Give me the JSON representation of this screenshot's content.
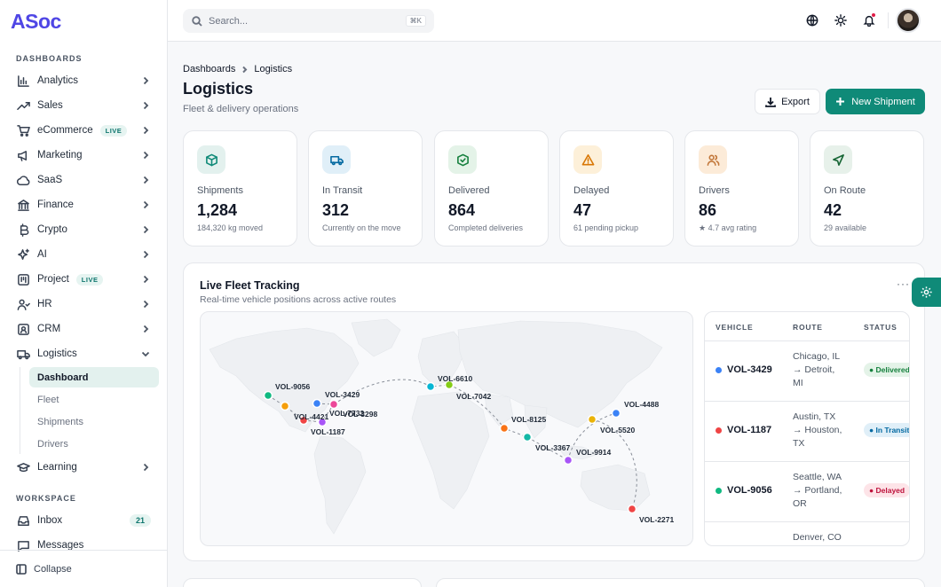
{
  "app": {
    "logo": "ASoc"
  },
  "sidebar": {
    "section_dashboards": "DASHBOARDS",
    "items": [
      {
        "label": "Analytics",
        "icon": "bar-chart-icon"
      },
      {
        "label": "Sales",
        "icon": "trending-up-icon"
      },
      {
        "label": "eCommerce",
        "icon": "cart-icon",
        "badge": "LIVE"
      },
      {
        "label": "Marketing",
        "icon": "megaphone-icon"
      },
      {
        "label": "SaaS",
        "icon": "cloud-icon"
      },
      {
        "label": "Finance",
        "icon": "bank-icon"
      },
      {
        "label": "Crypto",
        "icon": "bitcoin-icon"
      },
      {
        "label": "AI",
        "icon": "sparkles-icon"
      },
      {
        "label": "Project",
        "icon": "kanban-icon",
        "badge": "LIVE"
      },
      {
        "label": "HR",
        "icon": "users-icon"
      },
      {
        "label": "CRM",
        "icon": "contact-icon"
      },
      {
        "label": "Logistics",
        "icon": "truck-icon"
      }
    ],
    "logistics_sub": [
      "Dashboard",
      "Fleet",
      "Shipments",
      "Drivers"
    ],
    "learning": "Learning",
    "section_workspace": "WORKSPACE",
    "inbox": {
      "label": "Inbox",
      "count": "21"
    },
    "messages": "Messages",
    "collapse": "Collapse"
  },
  "topbar": {
    "search_placeholder": "Search...",
    "shortcut": "⌘K"
  },
  "header": {
    "breadcrumb": [
      "Dashboards",
      "Logistics"
    ],
    "title": "Logistics",
    "subtitle": "Fleet & delivery operations",
    "export_label": "Export",
    "new_label": "New Shipment"
  },
  "stats": [
    {
      "label": "Shipments",
      "value": "1,284",
      "hint": "184,320 kg moved",
      "color": "#0f8a78",
      "bg": "#e3f1ee"
    },
    {
      "label": "In Transit",
      "value": "312",
      "hint": "Currently on the move",
      "color": "#0369a1",
      "bg": "#e0eff8"
    },
    {
      "label": "Delivered",
      "value": "864",
      "hint": "Completed deliveries",
      "color": "#15803d",
      "bg": "#e4f3e8"
    },
    {
      "label": "Delayed",
      "value": "47",
      "hint": "61 pending pickup",
      "color": "#d97706",
      "bg": "#fdf0d9"
    },
    {
      "label": "Drivers",
      "value": "86",
      "hint": "★ 4.7 avg rating",
      "color": "#c2773a",
      "bg": "#fcebd8"
    },
    {
      "label": "On Route",
      "value": "42",
      "hint": "29 available",
      "color": "#166534",
      "bg": "#e7f1ea"
    }
  ],
  "fleet": {
    "title": "Live Fleet Tracking",
    "subtitle": "Real-time vehicle positions across active routes",
    "more": "···",
    "vehicles_on_map": [
      {
        "id": "VOL-9056",
        "color": "#10b981"
      },
      {
        "id": "VOL-4421",
        "color": "#f59e0b"
      },
      {
        "id": "VOL-3429",
        "color": "#3b82f6"
      },
      {
        "id": "VOL-7732",
        "color": "#ec4899"
      },
      {
        "id": "VOL-3298",
        "color": "#a855f7"
      },
      {
        "id": "VOL-1187",
        "color": "#ef4444"
      },
      {
        "id": "VOL-6610",
        "color": "#06b6d4"
      },
      {
        "id": "VOL-7042",
        "color": "#84cc16"
      },
      {
        "id": "VOL-8125",
        "color": "#f97316"
      },
      {
        "id": "VOL-3367",
        "color": "#14b8a6"
      },
      {
        "id": "VOL-9914",
        "color": "#a855f7"
      },
      {
        "id": "VOL-5520",
        "color": "#eab308"
      },
      {
        "id": "VOL-4488",
        "color": "#3b82f6"
      },
      {
        "id": "VOL-2271",
        "color": "#ef4444"
      }
    ],
    "table_headers": [
      "VEHICLE",
      "ROUTE",
      "STATUS"
    ],
    "rows": [
      {
        "vehicle": "VOL-3429",
        "route_from": "Chicago, IL",
        "route_to": "→ Detroit,",
        "route_to2": "MI",
        "status": "Delivered",
        "dot": "#3b82f6",
        "fg": "#15803d",
        "bg": "#e4f3e8"
      },
      {
        "vehicle": "VOL-1187",
        "route_from": "Austin, TX",
        "route_to": "→ Houston,",
        "route_to2": "TX",
        "status": "In Transit",
        "dot": "#ef4444",
        "fg": "#0369a1",
        "bg": "#e0eff8"
      },
      {
        "vehicle": "VOL-9056",
        "route_from": "Seattle, WA",
        "route_to": "→ Portland,",
        "route_to2": "OR",
        "status": "Delayed",
        "dot": "#10b981",
        "fg": "#be123c",
        "bg": "#fde4e8"
      },
      {
        "vehicle": "",
        "route_from": "Denver, CO",
        "route_to": "",
        "route_to2": "",
        "status": "",
        "dot": "",
        "fg": "",
        "bg": ""
      }
    ]
  }
}
